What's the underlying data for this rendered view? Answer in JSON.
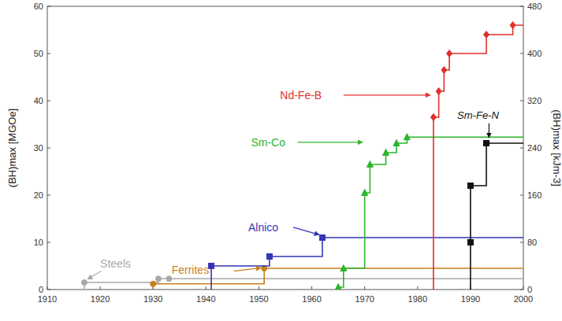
{
  "chart_data": {
    "type": "line",
    "y_label": "(BH)max [MGOe]",
    "y2_label": "(BH)max [kJm-3]",
    "xlim": [
      1910,
      2000
    ],
    "xticks": [
      1910,
      1920,
      1930,
      1940,
      1950,
      1960,
      1970,
      1980,
      1990,
      2000
    ],
    "ylim": [
      0,
      60
    ],
    "yticks": [
      0,
      10,
      20,
      30,
      40,
      50,
      60
    ],
    "y2lim": [
      0,
      480
    ],
    "y2ticks": [
      0,
      80,
      160,
      240,
      320,
      400,
      480
    ],
    "grid": false,
    "line_style": "step",
    "series": [
      {
        "name": "Steels",
        "color": "#a8a8a8",
        "marker": "circle",
        "x": [
          1917,
          1931,
          1933
        ],
        "values": [
          1.5,
          2.3,
          2.3
        ]
      },
      {
        "name": "Ferrites",
        "color": "#c8801e",
        "marker": "circle",
        "x": [
          1930,
          1951
        ],
        "values": [
          1.2,
          4.5
        ]
      },
      {
        "name": "Alnico",
        "color": "#3535b5",
        "marker": "square",
        "x": [
          1941,
          1952,
          1962
        ],
        "values": [
          5,
          7,
          11
        ]
      },
      {
        "name": "Sm-Co",
        "color": "#2cb52c",
        "marker": "triangle",
        "x": [
          1965,
          1966,
          1970,
          1971,
          1974,
          1976,
          1978
        ],
        "values": [
          0.5,
          4.5,
          20.5,
          26.5,
          29,
          31,
          32.3
        ]
      },
      {
        "name": "Nd-Fe-B",
        "color": "#e0302a",
        "marker": "diamond",
        "x": [
          1983,
          1984,
          1985,
          1986,
          1993,
          1998
        ],
        "values": [
          36.5,
          42,
          46.5,
          50,
          54,
          56
        ]
      },
      {
        "name": "Sm-Fe-N",
        "color": "#111111",
        "marker": "square",
        "x": [
          1990,
          1990,
          1993
        ],
        "values": [
          10,
          22,
          31
        ]
      }
    ]
  }
}
